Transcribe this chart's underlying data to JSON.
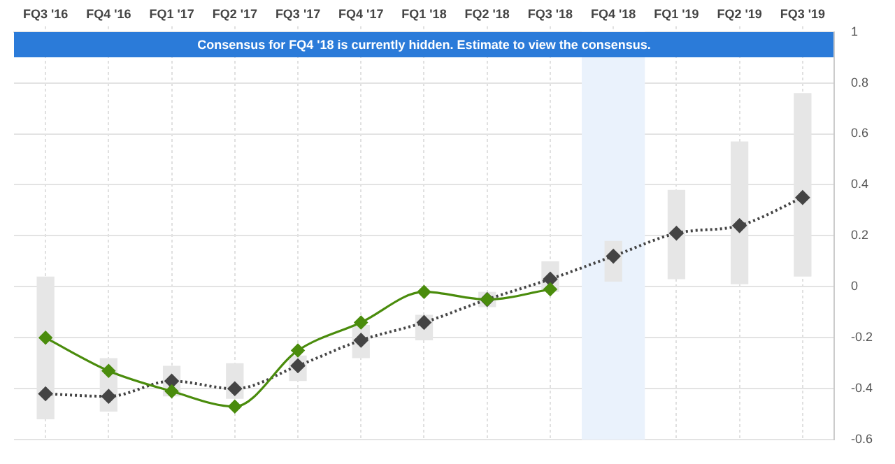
{
  "chart_data": {
    "type": "bar",
    "categories": [
      "FQ3 '16",
      "FQ4 '16",
      "FQ1 '17",
      "FQ2 '17",
      "FQ3 '17",
      "FQ4 '17",
      "FQ1 '18",
      "FQ2 '18",
      "FQ3 '18",
      "FQ4 '18",
      "FQ1 '19",
      "FQ2 '19",
      "FQ3 '19"
    ],
    "series": [
      {
        "color": "#e6e6e6",
        "base": [
          -0.52,
          -0.49,
          -0.43,
          -0.44,
          -0.37,
          -0.28,
          -0.21,
          -0.08,
          -0.02,
          0.02,
          0.03,
          0.01,
          0.04
        ],
        "values": [
          0.56,
          0.21,
          0.12,
          0.14,
          0.1,
          0.13,
          0.1,
          0.06,
          0.12,
          0.16,
          0.35,
          0.56,
          0.72
        ]
      },
      {
        "type": "line",
        "color": "#4a8c0c",
        "line_style": "solid",
        "values": [
          -0.2,
          -0.33,
          -0.41,
          -0.47,
          -0.25,
          -0.14,
          -0.02,
          -0.05,
          -0.01,
          null,
          null,
          null,
          null
        ]
      },
      {
        "type": "line",
        "color": "#444444",
        "line_style": "dotted",
        "values": [
          -0.42,
          -0.43,
          -0.37,
          -0.4,
          -0.31,
          -0.21,
          -0.14,
          -0.05,
          0.03,
          0.12,
          0.21,
          0.24,
          0.35
        ]
      }
    ],
    "ylim": [
      -0.6,
      1
    ],
    "yticks": [
      -0.6,
      -0.4,
      -0.2,
      0,
      0.2,
      0.4,
      0.6,
      0.8,
      1
    ],
    "grid": true,
    "legend": false,
    "marker": "diamond",
    "bands": [
      {
        "axis": "x",
        "from": "FQ4 '18",
        "to": "FQ4 '18",
        "color": "#eaf2fc"
      }
    ],
    "annotations": [
      "Consensus for FQ4 '18 is currently hidden. Estimate to view the consensus."
    ]
  }
}
